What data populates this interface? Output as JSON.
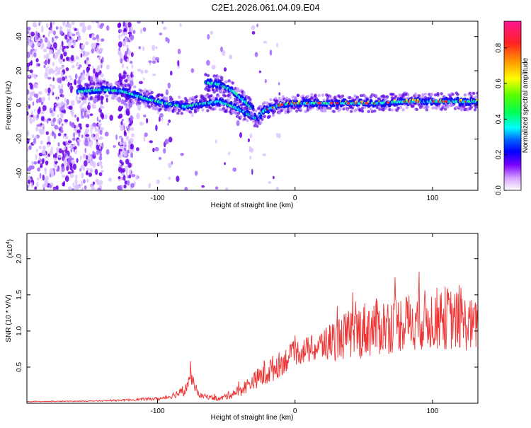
{
  "title": "C2E1.2026.061.04.09.E04",
  "chart_data": [
    {
      "type": "heatmap",
      "name": "spectrogram",
      "xlabel": "Height of straight line (km)",
      "ylabel": "Frequency (Hz)",
      "xlim": [
        -195,
        133
      ],
      "ylim": [
        -50,
        49
      ],
      "xticks": [
        -100,
        0,
        100
      ],
      "yticks": [
        -40,
        -20,
        0,
        20,
        40
      ],
      "colorbar": {
        "label": "Normalized spectral amplitude",
        "range": [
          0.0,
          0.95
        ],
        "ticks": [
          0.0,
          0.2,
          0.4,
          0.6,
          0.8
        ],
        "tick_labels": [
          "0.0",
          "0.2",
          "0.4",
          "0.6",
          "0.8"
        ]
      },
      "ridge": [
        {
          "x": -155,
          "y": 8
        },
        {
          "x": -140,
          "y": 9
        },
        {
          "x": -125,
          "y": 8
        },
        {
          "x": -110,
          "y": 4
        },
        {
          "x": -95,
          "y": 1
        },
        {
          "x": -80,
          "y": -1
        },
        {
          "x": -65,
          "y": 1
        },
        {
          "x": -55,
          "y": 2
        },
        {
          "x": -45,
          "y": -1
        },
        {
          "x": -35,
          "y": -5
        },
        {
          "x": -28,
          "y": -8
        },
        {
          "x": -22,
          "y": -3
        },
        {
          "x": -10,
          "y": 0
        },
        {
          "x": 0,
          "y": 1
        },
        {
          "x": 20,
          "y": 1
        },
        {
          "x": 40,
          "y": 1
        },
        {
          "x": 60,
          "y": 1
        },
        {
          "x": 80,
          "y": 2
        },
        {
          "x": 100,
          "y": 2
        },
        {
          "x": 120,
          "y": 2
        },
        {
          "x": 133,
          "y": 2
        }
      ],
      "branch": [
        {
          "x": -65,
          "y": 13
        },
        {
          "x": -55,
          "y": 12
        },
        {
          "x": -45,
          "y": 8
        },
        {
          "x": -38,
          "y": 3
        },
        {
          "x": -30,
          "y": -3
        }
      ]
    },
    {
      "type": "line",
      "name": "snr",
      "xlabel": "Height of straight line (km)",
      "ylabel": "SNR (10 * V/V)",
      "scale_label": "(x10",
      "scale_exponent": "4",
      "scale_close": ")",
      "color": "#ee3333",
      "xlim": [
        -195,
        133
      ],
      "ylim": [
        0,
        23500
      ],
      "xticks": [
        -100,
        0,
        100
      ],
      "yticks": [
        5000,
        10000,
        15000,
        20000
      ],
      "ytick_labels": [
        "0.5",
        "1.0",
        "1.5",
        "2.0"
      ],
      "envelope": [
        {
          "x": -195,
          "base": 200,
          "amp": 100
        },
        {
          "x": -140,
          "base": 300,
          "amp": 150
        },
        {
          "x": -95,
          "base": 600,
          "amp": 500
        },
        {
          "x": -80,
          "base": 1500,
          "amp": 1500
        },
        {
          "x": -76,
          "base": 3500,
          "amp": 2000
        },
        {
          "x": -70,
          "base": 1000,
          "amp": 800
        },
        {
          "x": -55,
          "base": 500,
          "amp": 600
        },
        {
          "x": -40,
          "base": 1500,
          "amp": 1800
        },
        {
          "x": -30,
          "base": 2800,
          "amp": 2200
        },
        {
          "x": -22,
          "base": 3500,
          "amp": 4000
        },
        {
          "x": -10,
          "base": 5000,
          "amp": 3500
        },
        {
          "x": 0,
          "base": 6500,
          "amp": 3500
        },
        {
          "x": 15,
          "base": 7000,
          "amp": 4000
        },
        {
          "x": 30,
          "base": 8000,
          "amp": 6000
        },
        {
          "x": 50,
          "base": 9000,
          "amp": 8000
        },
        {
          "x": 80,
          "base": 10000,
          "amp": 8000
        },
        {
          "x": 110,
          "base": 10500,
          "amp": 9000
        },
        {
          "x": 133,
          "base": 9500,
          "amp": 7000
        }
      ]
    }
  ]
}
